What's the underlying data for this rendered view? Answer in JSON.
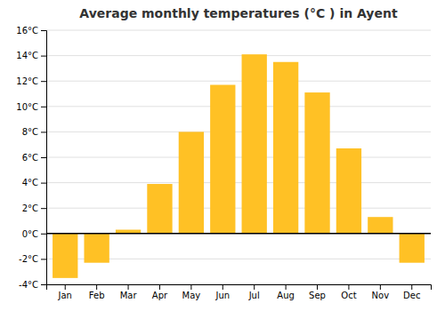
{
  "chart_data": {
    "type": "bar",
    "title": "Average monthly temperatures (°C ) in Ayent",
    "categories": [
      "Jan",
      "Feb",
      "Mar",
      "Apr",
      "May",
      "Jun",
      "Jul",
      "Aug",
      "Sep",
      "Oct",
      "Nov",
      "Dec"
    ],
    "values": [
      -3.5,
      -2.3,
      0.3,
      3.9,
      8.0,
      11.7,
      14.1,
      13.5,
      11.1,
      6.7,
      1.3,
      -2.3
    ],
    "color": "#FFC125",
    "ylim": [
      -4,
      16
    ],
    "yticks": [
      {
        "value": -4,
        "label": "-4°C"
      },
      {
        "value": -2,
        "label": "-2°C"
      },
      {
        "value": 0,
        "label": "0°C"
      },
      {
        "value": 2,
        "label": "2°C"
      },
      {
        "value": 4,
        "label": "4°C"
      },
      {
        "value": 6,
        "label": "6°C"
      },
      {
        "value": 8,
        "label": "8°C"
      },
      {
        "value": 10,
        "label": "10°C"
      },
      {
        "value": 12,
        "label": "12°C"
      },
      {
        "value": 14,
        "label": "14°C"
      },
      {
        "value": 16,
        "label": "16°C"
      }
    ],
    "grid": true
  }
}
